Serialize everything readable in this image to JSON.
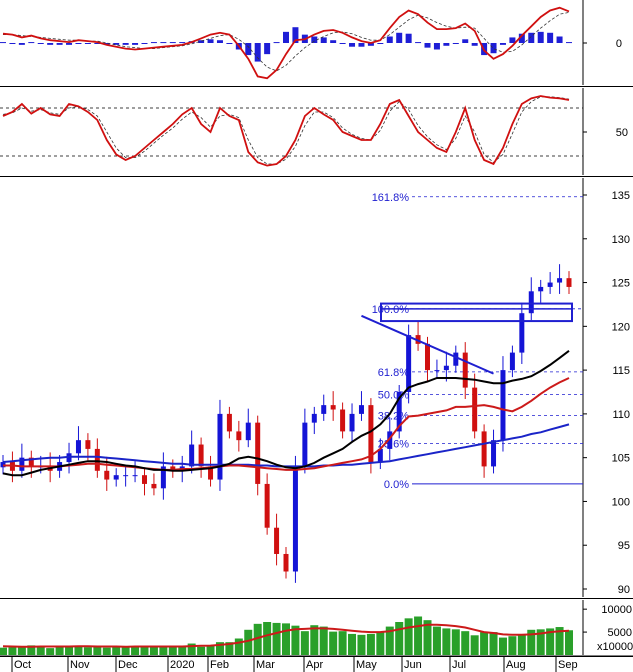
{
  "chart_data": [
    {
      "type": "line",
      "panel": "macd",
      "y_ticks": [
        0
      ],
      "series": [
        {
          "values": [
            1,
            0.9,
            0.6,
            0.8,
            0.5,
            0.3,
            0.2,
            0.1,
            0.3,
            0.2,
            0.1,
            -0.2,
            -0.4,
            -0.6,
            -0.7,
            -0.6,
            -0.5,
            -0.4,
            -0.3,
            -0.2,
            0.1,
            0.5,
            0.9,
            1.1,
            0.9,
            -0.3,
            -1.7,
            -3.6,
            -3.8,
            -2.9,
            -1.2,
            0.3,
            0.4,
            0.9,
            1.3,
            1.4,
            1.1,
            0.6,
            0.2,
            0,
            0.3,
            1.6,
            2.8,
            3.5,
            3.1,
            2.2,
            1.5,
            1.5,
            1.6,
            2.1,
            1.3,
            -0.8,
            -1.7,
            -1.2,
            -0.3,
            0.8,
            1.8,
            2.8,
            3.5,
            3.8,
            3.4
          ]
        },
        {
          "values": [
            0.9,
            0.9,
            0.8,
            0.7,
            0.6,
            0.5,
            0.4,
            0.3,
            0.3,
            0.2,
            0.2,
            0,
            -0.2,
            -0.4,
            -0.5,
            -0.6,
            -0.6,
            -0.5,
            -0.4,
            -0.3,
            -0.1,
            0.2,
            0.5,
            0.8,
            0.9,
            0.4,
            -0.4,
            -1.6,
            -2.6,
            -3,
            -2.4,
            -1.4,
            -0.5,
            0.2,
            0.7,
            1.1,
            1.2,
            1,
            0.6,
            0.3,
            0.3,
            0.9,
            1.7,
            2.5,
            3,
            2.7,
            2.2,
            1.8,
            1.6,
            1.7,
            1.6,
            0.5,
            -0.6,
            -1,
            -0.9,
            -0.2,
            0.7,
            1.6,
            2.4,
            3.1,
            3.3
          ]
        }
      ],
      "histogram": [
        0.1,
        0,
        -0.2,
        0.1,
        -0.1,
        -0.2,
        -0.2,
        -0.2,
        0,
        0,
        -0.1,
        -0.2,
        -0.2,
        -0.2,
        -0.2,
        0,
        0.1,
        0.1,
        0.1,
        0.1,
        0.2,
        0.3,
        0.4,
        0.3,
        0,
        -0.7,
        -1.3,
        -2,
        -1.2,
        0.1,
        1.2,
        1.7,
        0.9,
        0.7,
        0.6,
        0.3,
        -0.1,
        -0.4,
        -0.4,
        -0.3,
        0,
        0.7,
        1.1,
        1,
        0.1,
        -0.5,
        -0.7,
        -0.3,
        0,
        0.4,
        -0.3,
        -1.3,
        -1.1,
        -0.2,
        0.6,
        1,
        1.1,
        1.2,
        1.1,
        0.7,
        0.1
      ]
    },
    {
      "type": "line",
      "panel": "stochastic",
      "y_ticks": [
        50
      ],
      "levels": [
        80,
        20
      ],
      "series": [
        {
          "values": [
            70,
            75,
            85,
            73,
            80,
            72,
            70,
            85,
            82,
            75,
            65,
            40,
            22,
            15,
            20,
            30,
            40,
            50,
            60,
            72,
            80,
            60,
            50,
            80,
            70,
            65,
            25,
            12,
            8,
            10,
            20,
            40,
            70,
            80,
            72,
            65,
            50,
            45,
            40,
            40,
            60,
            85,
            90,
            70,
            50,
            40,
            30,
            25,
            50,
            80,
            40,
            15,
            10,
            30,
            60,
            85,
            92,
            95,
            93,
            92,
            90
          ]
        },
        {
          "values": [
            72,
            74,
            80,
            76,
            78,
            74,
            72,
            80,
            82,
            78,
            70,
            50,
            30,
            18,
            18,
            26,
            36,
            46,
            55,
            66,
            75,
            68,
            56,
            70,
            72,
            68,
            40,
            18,
            10,
            10,
            16,
            32,
            58,
            75,
            75,
            68,
            55,
            47,
            42,
            40,
            52,
            76,
            88,
            78,
            58,
            44,
            34,
            28,
            42,
            70,
            50,
            22,
            12,
            22,
            48,
            75,
            88,
            94,
            94,
            93,
            91
          ]
        }
      ]
    },
    {
      "type": "candlestick",
      "panel": "price",
      "y_ticks": [
        90,
        95,
        100,
        105,
        110,
        115,
        120,
        125,
        130,
        135
      ],
      "x_ticks": [
        "Oct",
        "Nov",
        "Dec",
        "2020",
        "Feb",
        "Mar",
        "Apr",
        "May",
        "Jun",
        "Jul",
        "Aug",
        "Sep"
      ],
      "fibonacci": [
        {
          "label": "161.8%",
          "value": 134.8
        },
        {
          "label": "100.0%",
          "value": 122.0
        },
        {
          "label": "61.8%",
          "value": 114.8
        },
        {
          "label": "50.0%",
          "value": 112.2
        },
        {
          "label": "38.2%",
          "value": 109.8
        },
        {
          "label": "23.6%",
          "value": 106.6
        },
        {
          "label": "0.0%",
          "value": 102.0
        }
      ],
      "close": [
        104.5,
        103.5,
        105,
        104,
        104,
        103.5,
        104.5,
        105.5,
        107,
        106,
        103.5,
        102.5,
        103,
        103,
        103,
        102,
        101.5,
        104,
        103.5,
        104,
        106.5,
        104,
        102.5,
        110,
        108,
        107,
        109,
        102,
        97,
        94,
        92,
        104,
        109,
        110,
        111,
        110.5,
        108,
        110,
        111,
        104.5,
        106,
        108,
        112.5,
        119,
        118,
        115,
        115,
        115.5,
        117,
        113,
        108,
        104,
        107,
        115,
        117,
        121.5,
        124,
        124.5,
        125,
        125.5,
        124.5
      ],
      "ma_black": [
        103.2,
        103,
        103,
        103.3,
        103.6,
        103.8,
        104,
        104.2,
        104.4,
        104.6,
        104.6,
        104.5,
        104.3,
        104.1,
        104,
        103.8,
        103.6,
        103.6,
        103.5,
        103.5,
        103.6,
        103.7,
        103.8,
        104,
        104.3,
        104.9,
        105.1,
        104.9,
        104.6,
        104.2,
        103.9,
        103.8,
        104,
        104.4,
        105,
        105.5,
        106,
        106.8,
        107.5,
        108,
        108.8,
        110,
        111.8,
        113,
        113.4,
        113.7,
        114.1,
        114.1,
        114.1,
        114,
        113.9,
        113.7,
        113.5,
        113.5,
        113.8,
        114,
        114.3,
        114.9,
        115.6,
        116.4,
        117.2
      ],
      "ma_red": [
        104.1,
        104.1,
        104,
        104,
        104,
        104,
        104,
        104.1,
        104.2,
        104.3,
        104.3,
        104.2,
        104.1,
        104,
        103.9,
        103.8,
        103.7,
        103.6,
        103.6,
        103.7,
        103.7,
        103.8,
        103.9,
        104,
        104.1,
        104.1,
        104,
        103.9,
        103.8,
        103.7,
        103.6,
        103.6,
        103.7,
        103.8,
        104,
        104.2,
        104.4,
        104.6,
        104.8,
        105.2,
        106,
        107.2,
        108.6,
        109.7,
        109.8,
        110,
        110.2,
        110.4,
        110.8,
        110.8,
        110.9,
        111,
        110.8,
        110.5,
        110.3,
        110.8,
        111.5,
        112.3,
        113,
        113.6,
        114.1
      ],
      "ma_blue": [
        104.5,
        104.6,
        104.7,
        104.8,
        104.9,
        105,
        105,
        105.1,
        105.1,
        105.1,
        105.1,
        105,
        104.9,
        104.8,
        104.7,
        104.6,
        104.5,
        104.4,
        104.3,
        104.3,
        104.2,
        104.2,
        104.2,
        104.2,
        104.2,
        104.2,
        104.2,
        104.1,
        104.1,
        104,
        104,
        104,
        104,
        104,
        104.1,
        104.1,
        104.2,
        104.2,
        104.3,
        104.4,
        104.5,
        104.6,
        104.8,
        105,
        105.2,
        105.4,
        105.6,
        105.8,
        106,
        106.2,
        106.4,
        106.6,
        106.8,
        107,
        107.2,
        107.4,
        107.7,
        107.9,
        108.2,
        108.5,
        108.8
      ]
    },
    {
      "type": "bar",
      "panel": "volume",
      "y_ticks": [
        5000,
        10000
      ],
      "unit_label": "x10000",
      "values": [
        1600,
        1700,
        1900,
        2100,
        1800,
        1500,
        1800,
        1900,
        2000,
        1700,
        1900,
        1600,
        1700,
        1800,
        1900,
        1900,
        1700,
        1800,
        1900,
        1800,
        2500,
        1800,
        2000,
        2800,
        2800,
        3600,
        5500,
        6800,
        7200,
        7000,
        6900,
        6400,
        5200,
        6500,
        6200,
        5100,
        5200,
        4600,
        4400,
        4600,
        5100,
        6200,
        7200,
        8000,
        8400,
        7600,
        6200,
        5800,
        5600,
        5200,
        4300,
        5000,
        5000,
        3800,
        4100,
        4500,
        5500,
        5600,
        5800,
        6100,
        5400
      ],
      "ma": [
        1900,
        1850,
        1800,
        1800,
        1850,
        1850,
        1850,
        1850,
        1900,
        1900,
        1850,
        1850,
        1850,
        1800,
        1850,
        1850,
        1850,
        1850,
        1850,
        1850,
        1950,
        2000,
        2050,
        2200,
        2400,
        2700,
        3100,
        3700,
        4300,
        4800,
        5300,
        5600,
        5700,
        5800,
        5800,
        5700,
        5500,
        5300,
        5100,
        5000,
        5000,
        5200,
        5600,
        6000,
        6300,
        6600,
        6600,
        6500,
        6300,
        6000,
        5500,
        5000,
        4800,
        4500,
        4400,
        4400,
        4500,
        4700,
        5000,
        5200,
        5300
      ]
    }
  ]
}
